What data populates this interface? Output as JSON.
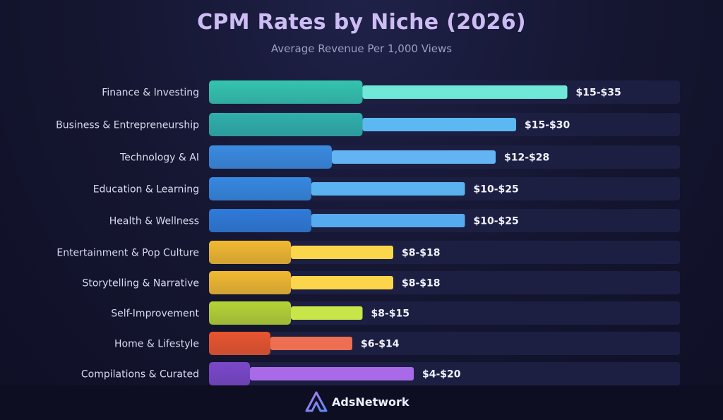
{
  "chart_data": {
    "type": "bar",
    "orientation": "horizontal",
    "title": "CPM Rates by Niche (2026)",
    "subtitle": "Average Revenue Per 1,000 Views",
    "unit": "USD per 1,000 views",
    "xlim": [
      0,
      40
    ],
    "categories": [
      "Finance & Investing",
      "Business & Entrepreneurship",
      "Technology & AI",
      "Education & Learning",
      "Health & Wellness",
      "Entertainment & Pop Culture",
      "Storytelling & Narrative",
      "Self-Improvement",
      "Home & Lifestyle",
      "Compilations & Curated"
    ],
    "ranges": [
      {
        "low": 15,
        "high": 35,
        "label": "$15-$35"
      },
      {
        "low": 15,
        "high": 30,
        "label": "$15-$30"
      },
      {
        "low": 12,
        "high": 28,
        "label": "$12-$28"
      },
      {
        "low": 10,
        "high": 25,
        "label": "$10-$25"
      },
      {
        "low": 10,
        "high": 25,
        "label": "$10-$25"
      },
      {
        "low": 8,
        "high": 18,
        "label": "$8-$18"
      },
      {
        "low": 8,
        "high": 18,
        "label": "$8-$18"
      },
      {
        "low": 8,
        "high": 15,
        "label": "$8-$15"
      },
      {
        "low": 6,
        "high": 14,
        "label": "$6-$14"
      },
      {
        "low": 4,
        "high": 20,
        "label": "$4-$20"
      }
    ],
    "colors": [
      {
        "base": "#34c4b0",
        "range": "#6fe8d8"
      },
      {
        "base": "#2fb0ac",
        "range": "#5cb8f0"
      },
      {
        "base": "#3a8be0",
        "range": "#62b4f2"
      },
      {
        "base": "#3688e0",
        "range": "#5ab2f0"
      },
      {
        "base": "#2f7bd8",
        "range": "#56aaee"
      },
      {
        "base": "#f1b930",
        "range": "#fbd64a"
      },
      {
        "base": "#f1b930",
        "range": "#fbd64a"
      },
      {
        "base": "#b5d335",
        "range": "#c8e64a"
      },
      {
        "base": "#e8552e",
        "range": "#ee6e52"
      },
      {
        "base": "#7a48c8",
        "range": "#a86ae8"
      }
    ]
  },
  "brand": {
    "name": "AdsNetwork",
    "icon": "adsnetwork-logo-icon"
  },
  "palette": {
    "track": "#1d1f42",
    "label_text": "#d8daf0",
    "value_text": "#f2f3ff"
  }
}
